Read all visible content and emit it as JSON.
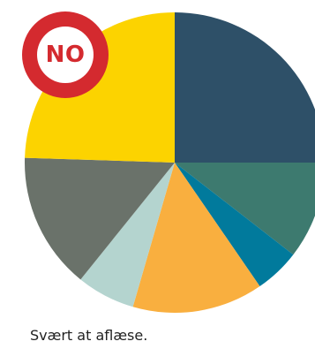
{
  "badge": {
    "text": "NO",
    "color": "#d42a2f"
  },
  "caption": "Svært at aflæse.",
  "chart_data": {
    "type": "pie",
    "title": "",
    "legend": "none",
    "slices": [
      {
        "value": 25.0,
        "color": "#2e5068"
      },
      {
        "value": 10.5,
        "color": "#3d7a6f"
      },
      {
        "value": 4.9,
        "color": "#017a9c"
      },
      {
        "value": 14.1,
        "color": "#f9af3f"
      },
      {
        "value": 6.3,
        "color": "#b4d4cf"
      },
      {
        "value": 14.7,
        "color": "#6a726a"
      },
      {
        "value": 24.5,
        "color": "#fcd300"
      }
    ]
  }
}
